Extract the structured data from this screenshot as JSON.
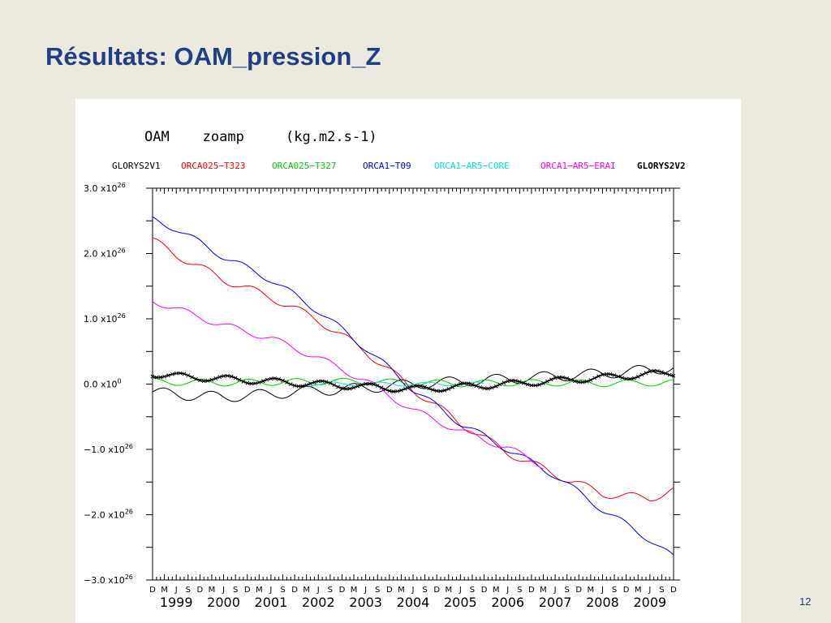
{
  "slide": {
    "title": "Résultats: OAM_pression_Z",
    "page_number": "12"
  },
  "chart_data": {
    "type": "line",
    "title": "OAM    zoamp     (kg.m2.s-1)",
    "xlabel": "",
    "ylabel": "",
    "x_unit": "month",
    "xlim": [
      "1998-12",
      "2009-12"
    ],
    "ylim": [
      -3.0,
      3.0
    ],
    "y_scale_note": "x10^26",
    "y_ticks": [
      {
        "value": 3.0,
        "label": "3.0 x10",
        "exp": "26"
      },
      {
        "value": 2.0,
        "label": "2.0 x10",
        "exp": "26"
      },
      {
        "value": 1.0,
        "label": "1.0 x10",
        "exp": "26"
      },
      {
        "value": 0.0,
        "label": "0.0 x10",
        "exp": "0"
      },
      {
        "value": -1.0,
        "label": "−1.0 x10",
        "exp": "26"
      },
      {
        "value": -2.0,
        "label": "−2.0 x10",
        "exp": "26"
      },
      {
        "value": -3.0,
        "label": "−3.0 x10",
        "exp": "26"
      }
    ],
    "month_labels": [
      "D",
      "M",
      "J",
      "S"
    ],
    "years": [
      "1999",
      "2000",
      "2001",
      "2002",
      "2003",
      "2004",
      "2005",
      "2006",
      "2007",
      "2008",
      "2009"
    ],
    "grid": false,
    "legend_position": "top",
    "series": [
      {
        "name": "GLORYS2V1",
        "color": "#000000",
        "style": "line",
        "bold": false,
        "x": [
          "1998-12",
          "1999-06",
          "2000-06",
          "2001-06",
          "2002-06",
          "2003-06",
          "2004-06",
          "2005-06",
          "2006-06",
          "2007-06",
          "2008-06",
          "2009-06",
          "2009-12"
        ],
        "trend": [
          -0.12,
          -0.16,
          -0.2,
          -0.15,
          -0.1,
          -0.06,
          0.0,
          0.04,
          0.08,
          0.12,
          0.16,
          0.22,
          0.25
        ],
        "amp": 0.08
      },
      {
        "name": "ORCA025−T323",
        "color": "#ff0000",
        "style": "line",
        "bold": false,
        "x": [
          "1998-12",
          "1999-06",
          "2000-06",
          "2001-06",
          "2002-06",
          "2003-06",
          "2004-06",
          "2005-06",
          "2006-06",
          "2007-06",
          "2008-06",
          "2009-06",
          "2009-12"
        ],
        "trend": [
          2.2,
          1.98,
          1.6,
          1.33,
          0.98,
          0.5,
          -0.08,
          -0.6,
          -1.05,
          -1.38,
          -1.68,
          -1.75,
          -1.62
        ],
        "amp": 0.06
      },
      {
        "name": "ORCA025−T327",
        "color": "#00cc00",
        "style": "line",
        "bold": false,
        "x": [
          "1998-12",
          "1999-06",
          "2000-06",
          "2001-06",
          "2002-06",
          "2003-06",
          "2004-06",
          "2005-06",
          "2006-06",
          "2007-06",
          "2008-06",
          "2009-06",
          "2009-12"
        ],
        "trend": [
          0.04,
          0.03,
          0.02,
          0.03,
          0.04,
          0.04,
          0.02,
          0.01,
          0.02,
          0.02,
          0.01,
          0.02,
          0.02
        ],
        "amp": 0.05
      },
      {
        "name": "ORCA1−T09",
        "color": "#0000ee",
        "style": "line",
        "bold": false,
        "x": [
          "1998-12",
          "1999-06",
          "2000-06",
          "2001-06",
          "2002-06",
          "2003-06",
          "2004-06",
          "2005-06",
          "2006-06",
          "2007-06",
          "2008-06",
          "2009-06",
          "2009-12"
        ],
        "trend": [
          2.52,
          2.38,
          1.95,
          1.6,
          1.12,
          0.55,
          -0.08,
          -0.6,
          -1.0,
          -1.4,
          -1.92,
          -2.38,
          -2.66
        ],
        "amp": 0.05
      },
      {
        "name": "ORCA1−AR5−CORE",
        "color": "#00e0e0",
        "style": "line",
        "bold": false,
        "x": [
          "2002-03",
          "2003-03",
          "2004-03",
          "2005-03",
          "2005-12"
        ],
        "trend": [
          0.0,
          0.0,
          0.0,
          0.0,
          0.0
        ],
        "amp": 0.03
      },
      {
        "name": "ORCA1−AR5−ERAI",
        "color": "#ff00ff",
        "style": "line",
        "bold": false,
        "x": [
          "1998-12",
          "1999-06",
          "2000-06",
          "2001-06",
          "2002-06",
          "2003-06",
          "2004-06",
          "2005-06",
          "2006-06",
          "2007-03"
        ],
        "trend": [
          1.28,
          1.15,
          0.9,
          0.7,
          0.4,
          0.05,
          -0.4,
          -0.72,
          -0.98,
          -1.25
        ],
        "amp": 0.05
      },
      {
        "name": "GLORYS2V2",
        "color": "#000000",
        "style": "marker-x",
        "bold": true,
        "x": [
          "1998-12",
          "1999-06",
          "2000-06",
          "2001-06",
          "2002-06",
          "2003-06",
          "2004-06",
          "2005-06",
          "2006-06",
          "2007-06",
          "2008-06",
          "2009-06",
          "2009-12"
        ],
        "trend": [
          0.16,
          0.12,
          0.08,
          0.04,
          0.0,
          -0.04,
          -0.08,
          -0.04,
          0.0,
          0.05,
          0.1,
          0.15,
          0.17
        ],
        "amp": 0.05
      }
    ]
  }
}
